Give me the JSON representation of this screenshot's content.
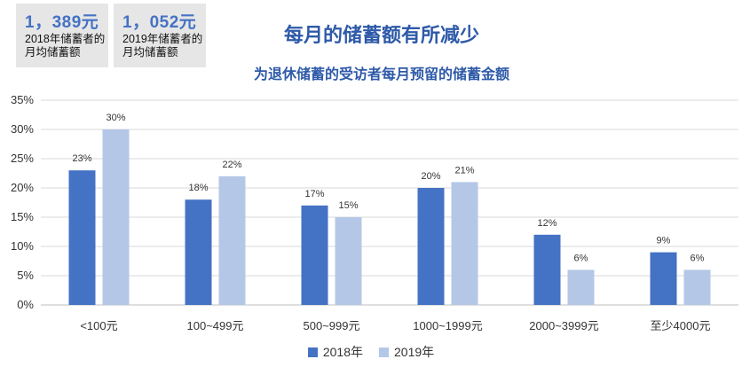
{
  "stats": [
    {
      "value": "1，389元",
      "label": "2018年储蓄者的月均储蓄额"
    },
    {
      "value": "1，052元",
      "label": "2019年储蓄者的月均储蓄额"
    }
  ],
  "chart_data": {
    "type": "bar",
    "title": "每月的储蓄额有所减少",
    "subtitle": "为退休储蓄的受访者每月预留的储蓄金额",
    "categories": [
      "<100元",
      "100~499元",
      "500~999元",
      "1000~1999元",
      "2000~3999元",
      "至少4000元"
    ],
    "series": [
      {
        "name": "2018年",
        "values": [
          23,
          18,
          17,
          20,
          12,
          9
        ],
        "color": "#4472c4"
      },
      {
        "name": "2019年",
        "values": [
          30,
          22,
          15,
          21,
          6,
          6
        ],
        "color": "#b4c7e7"
      }
    ],
    "ylim": [
      0,
      35
    ],
    "yticks": [
      "0%",
      "5%",
      "10%",
      "15%",
      "20%",
      "25%",
      "30%",
      "35%"
    ],
    "value_suffix": "%",
    "grid": true,
    "legend_position": "bottom"
  }
}
